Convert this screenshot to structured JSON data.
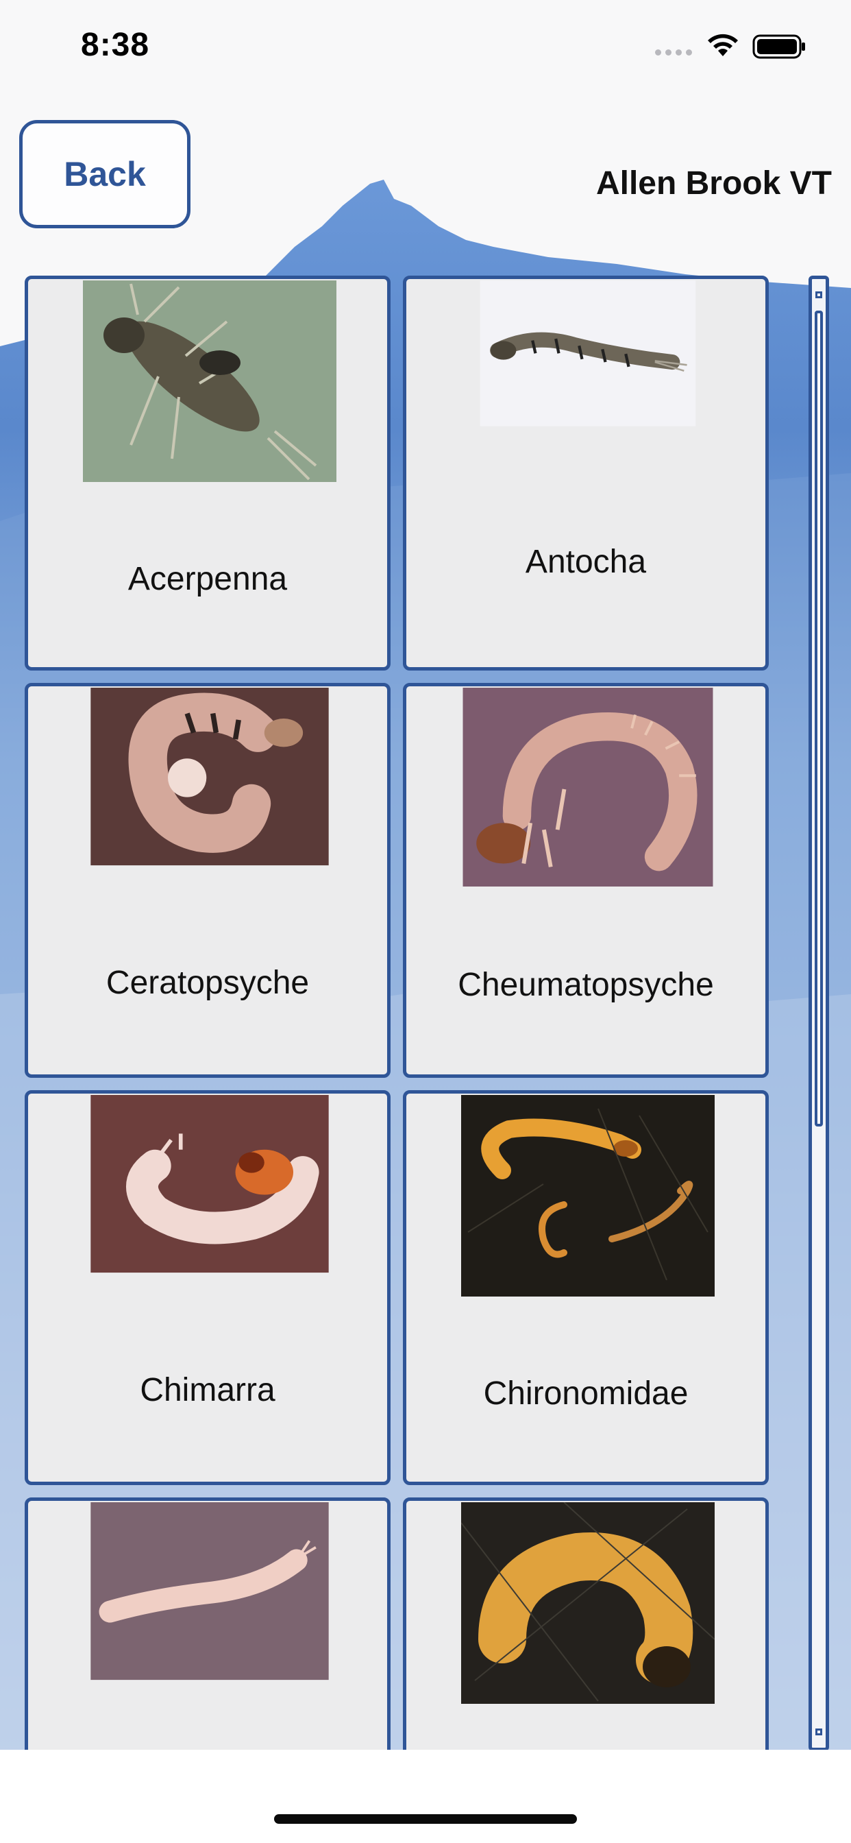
{
  "status_bar": {
    "time": "8:38"
  },
  "header": {
    "back_label": "Back",
    "site_name": "Allen Brook VT"
  },
  "taxa": [
    {
      "name": "Acerpenna"
    },
    {
      "name": "Antocha"
    },
    {
      "name": "Ceratopsyche"
    },
    {
      "name": "Cheumatopsyche"
    },
    {
      "name": "Chimarra"
    },
    {
      "name": "Chironomidae"
    },
    {
      "name": ""
    },
    {
      "name": ""
    }
  ],
  "colors": {
    "accent": "#2f5597",
    "card_bg": "#ececed",
    "sky": "#5f8ed1"
  }
}
